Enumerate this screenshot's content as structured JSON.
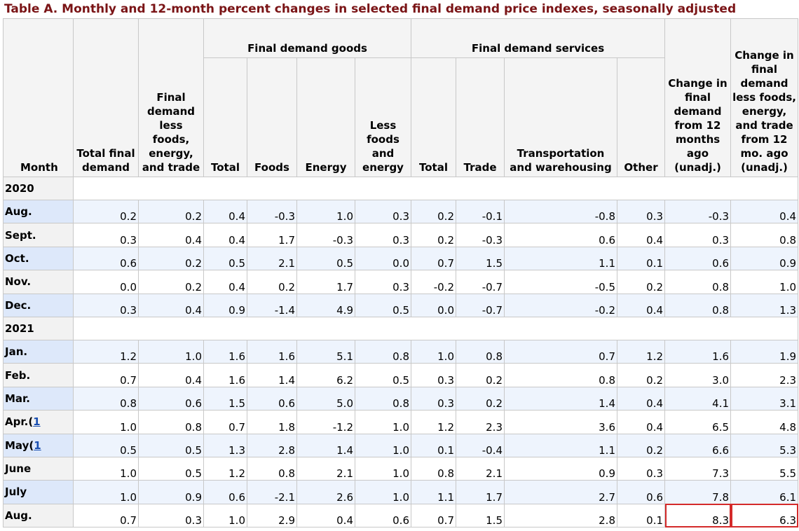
{
  "title": "Table A. Monthly and 12-month percent changes in selected final demand price indexes, seasonally adjusted",
  "chart_data": {
    "type": "table",
    "group_headers": {
      "goods": "Final demand goods",
      "services": "Final demand services"
    },
    "columns": {
      "month": "Month",
      "total_final_demand": "Total final demand",
      "fd_less_fet": "Final demand less foods, energy, and trade",
      "goods_total": "Total",
      "goods_foods": "Foods",
      "goods_energy": "Energy",
      "goods_less_fe": "Less foods and energy",
      "services_total": "Total",
      "services_trade": "Trade",
      "services_transport": "Transportation and warehousing",
      "services_other": "Other",
      "change_12m": "Change in final demand from 12 months ago (unadj.)",
      "change_12m_less": "Change in final demand less foods, energy, and trade from 12 mo. ago (unadj.)"
    },
    "sections": [
      {
        "year": "2020",
        "rows": [
          {
            "month": "Aug.",
            "footnote": "",
            "values": [
              "0.2",
              "0.2",
              "0.4",
              "-0.3",
              "1.0",
              "0.3",
              "0.2",
              "-0.1",
              "-0.8",
              "0.3",
              "-0.3",
              "0.4"
            ]
          },
          {
            "month": "Sept.",
            "footnote": "",
            "values": [
              "0.3",
              "0.4",
              "0.4",
              "1.7",
              "-0.3",
              "0.3",
              "0.2",
              "-0.3",
              "0.6",
              "0.4",
              "0.3",
              "0.8"
            ]
          },
          {
            "month": "Oct.",
            "footnote": "",
            "values": [
              "0.6",
              "0.2",
              "0.5",
              "2.1",
              "0.5",
              "0.0",
              "0.7",
              "1.5",
              "1.1",
              "0.1",
              "0.6",
              "0.9"
            ]
          },
          {
            "month": "Nov.",
            "footnote": "",
            "values": [
              "0.0",
              "0.2",
              "0.4",
              "0.2",
              "1.7",
              "0.3",
              "-0.2",
              "-0.7",
              "-0.5",
              "0.2",
              "0.8",
              "1.0"
            ]
          },
          {
            "month": "Dec.",
            "footnote": "",
            "values": [
              "0.3",
              "0.4",
              "0.9",
              "-1.4",
              "4.9",
              "0.5",
              "0.0",
              "-0.7",
              "-0.2",
              "0.4",
              "0.8",
              "1.3"
            ]
          }
        ]
      },
      {
        "year": "2021",
        "rows": [
          {
            "month": "Jan.",
            "footnote": "",
            "values": [
              "1.2",
              "1.0",
              "1.6",
              "1.6",
              "5.1",
              "0.8",
              "1.0",
              "0.8",
              "0.7",
              "1.2",
              "1.6",
              "1.9"
            ]
          },
          {
            "month": "Feb.",
            "footnote": "",
            "values": [
              "0.7",
              "0.4",
              "1.6",
              "1.4",
              "6.2",
              "0.5",
              "0.3",
              "0.2",
              "0.8",
              "0.2",
              "3.0",
              "2.3"
            ]
          },
          {
            "month": "Mar.",
            "footnote": "",
            "values": [
              "0.8",
              "0.6",
              "1.5",
              "0.6",
              "5.0",
              "0.8",
              "0.3",
              "0.2",
              "1.4",
              "0.4",
              "4.1",
              "3.1"
            ]
          },
          {
            "month": "Apr.",
            "footnote": "1",
            "values": [
              "1.0",
              "0.8",
              "0.7",
              "1.8",
              "-1.2",
              "1.0",
              "1.2",
              "2.3",
              "3.6",
              "0.4",
              "6.5",
              "4.8"
            ]
          },
          {
            "month": "May",
            "footnote": "1",
            "values": [
              "0.5",
              "0.5",
              "1.3",
              "2.8",
              "1.4",
              "1.0",
              "0.1",
              "-0.4",
              "1.1",
              "0.2",
              "6.6",
              "5.3"
            ]
          },
          {
            "month": "June",
            "footnote": "",
            "values": [
              "1.0",
              "0.5",
              "1.2",
              "0.8",
              "2.1",
              "1.0",
              "0.8",
              "2.1",
              "0.9",
              "0.3",
              "7.3",
              "5.5"
            ]
          },
          {
            "month": "July",
            "footnote": "",
            "values": [
              "1.0",
              "0.9",
              "0.6",
              "-2.1",
              "2.6",
              "1.0",
              "1.1",
              "1.7",
              "2.7",
              "0.6",
              "7.8",
              "6.1"
            ]
          },
          {
            "month": "Aug.",
            "footnote": "",
            "highlight_last_two": true,
            "values": [
              "0.7",
              "0.3",
              "1.0",
              "2.9",
              "0.4",
              "0.6",
              "0.7",
              "1.5",
              "2.8",
              "0.1",
              "8.3",
              "6.3"
            ]
          }
        ]
      }
    ],
    "highlight_color": "#d42a2a",
    "colors": {
      "title": "#7a1416",
      "header_bg": "#f4f4f4",
      "row_alt_month": "#dde8fa",
      "row_alt_values": "#eef4fd",
      "link": "#1a4fb0"
    }
  }
}
